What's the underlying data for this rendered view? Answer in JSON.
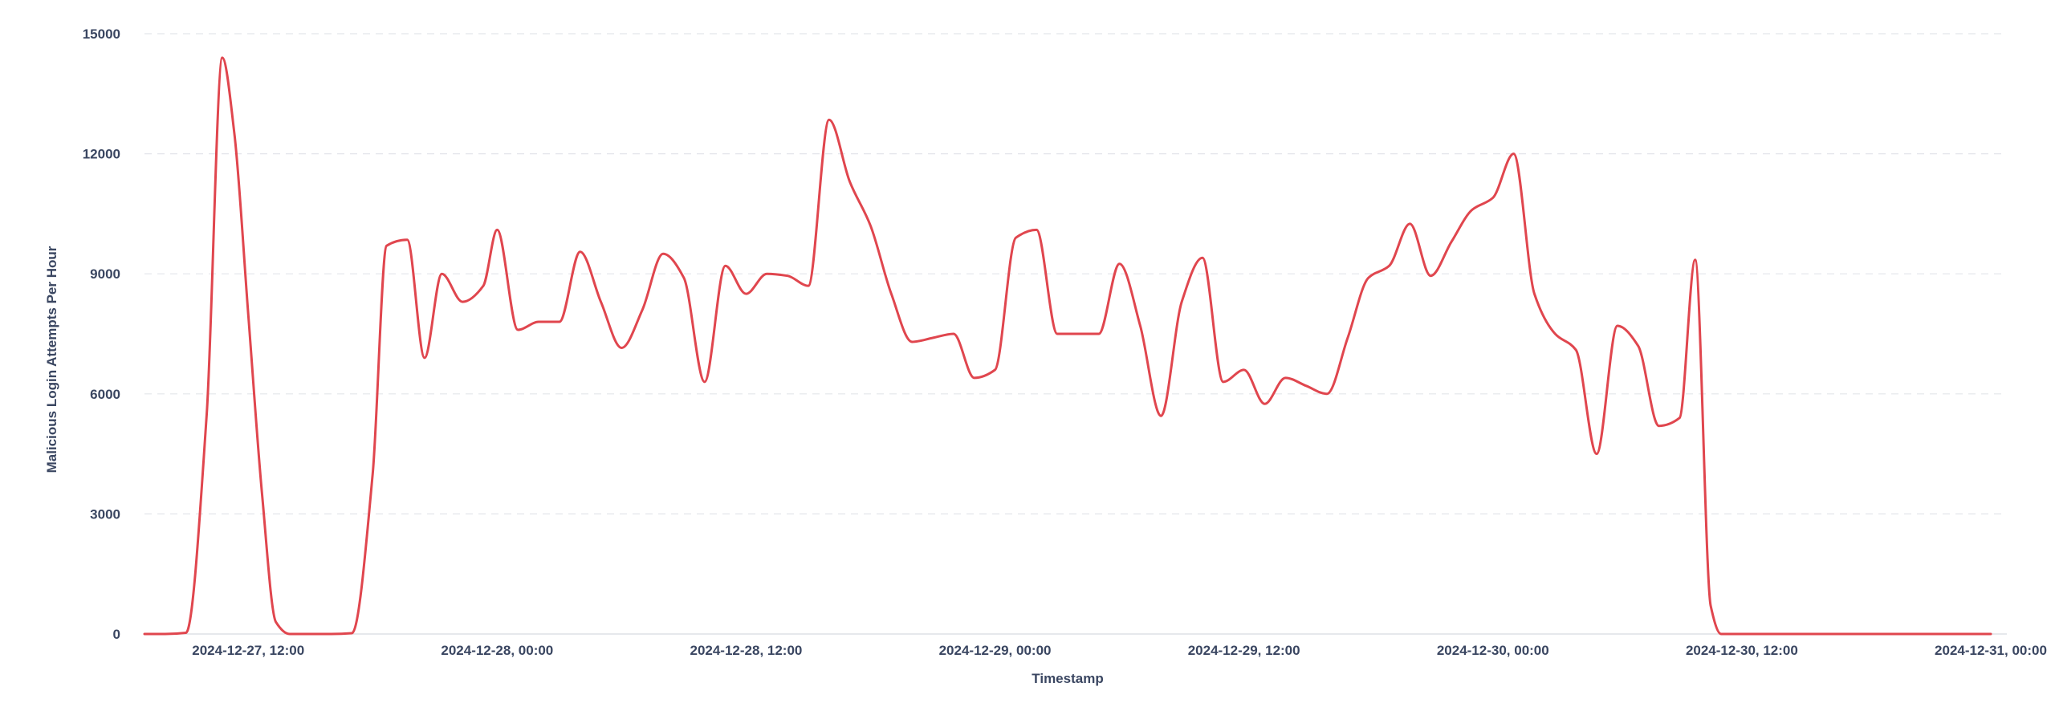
{
  "chart_data": {
    "type": "line",
    "title": "",
    "xlabel": "Timestamp",
    "ylabel": "Malicious Login Attempts Per Hour",
    "x_tick_labels": [
      "2024-12-27, 12:00",
      "2024-12-28, 00:00",
      "2024-12-28, 12:00",
      "2024-12-29, 00:00",
      "2024-12-29, 12:00",
      "2024-12-30, 00:00",
      "2024-12-30, 12:00",
      "2024-12-31, 00:00"
    ],
    "x_ticks": [
      "2024-12-27T12:00",
      "2024-12-28T00:00",
      "2024-12-28T12:00",
      "2024-12-29T00:00",
      "2024-12-29T12:00",
      "2024-12-30T00:00",
      "2024-12-30T12:00",
      "2024-12-31T00:00"
    ],
    "y_tick_labels": [
      "0",
      "3000",
      "6000",
      "9000",
      "12000",
      "15000"
    ],
    "ylim": [
      0,
      15000
    ],
    "xlim": [
      "2024-12-27T07:00",
      "2024-12-31T00:00"
    ],
    "grid": true,
    "series": [
      {
        "color": "#e0464e",
        "points": [
          [
            "2024-12-27T07:00",
            0
          ],
          [
            "2024-12-27T08:00",
            0
          ],
          [
            "2024-12-27T09:00",
            30
          ],
          [
            "2024-12-27T10:00",
            5500
          ],
          [
            "2024-12-27T10:45",
            14400
          ],
          [
            "2024-12-27T11:20",
            12500
          ],
          [
            "2024-12-27T12:00",
            8000
          ],
          [
            "2024-12-27T12:40",
            3500
          ],
          [
            "2024-12-27T13:20",
            300
          ],
          [
            "2024-12-27T14:00",
            0
          ],
          [
            "2024-12-27T15:00",
            0
          ],
          [
            "2024-12-27T16:00",
            0
          ],
          [
            "2024-12-27T17:00",
            20
          ],
          [
            "2024-12-27T18:00",
            4000
          ],
          [
            "2024-12-27T18:40",
            9700
          ],
          [
            "2024-12-27T19:40",
            9850
          ],
          [
            "2024-12-27T20:30",
            6900
          ],
          [
            "2024-12-27T21:20",
            9000
          ],
          [
            "2024-12-27T22:20",
            8300
          ],
          [
            "2024-12-27T23:20",
            8700
          ],
          [
            "2024-12-28T00:00",
            10100
          ],
          [
            "2024-12-28T01:00",
            7600
          ],
          [
            "2024-12-28T02:00",
            7800
          ],
          [
            "2024-12-28T03:00",
            7800
          ],
          [
            "2024-12-28T04:00",
            9550
          ],
          [
            "2024-12-28T05:00",
            8300
          ],
          [
            "2024-12-28T06:00",
            7150
          ],
          [
            "2024-12-28T07:00",
            8100
          ],
          [
            "2024-12-28T08:00",
            9500
          ],
          [
            "2024-12-28T09:00",
            8900
          ],
          [
            "2024-12-28T10:00",
            6300
          ],
          [
            "2024-12-28T11:00",
            9200
          ],
          [
            "2024-12-28T12:00",
            8500
          ],
          [
            "2024-12-28T13:00",
            9000
          ],
          [
            "2024-12-28T14:00",
            8950
          ],
          [
            "2024-12-28T15:00",
            8700
          ],
          [
            "2024-12-28T16:00",
            12850
          ],
          [
            "2024-12-28T17:00",
            11300
          ],
          [
            "2024-12-28T18:00",
            10200
          ],
          [
            "2024-12-28T19:00",
            8500
          ],
          [
            "2024-12-28T20:00",
            7300
          ],
          [
            "2024-12-28T21:00",
            7400
          ],
          [
            "2024-12-28T22:00",
            7500
          ],
          [
            "2024-12-28T23:00",
            6400
          ],
          [
            "2024-12-29T00:00",
            6600
          ],
          [
            "2024-12-29T01:00",
            9900
          ],
          [
            "2024-12-29T02:00",
            10100
          ],
          [
            "2024-12-29T03:00",
            7500
          ],
          [
            "2024-12-29T04:00",
            7500
          ],
          [
            "2024-12-29T05:00",
            7500
          ],
          [
            "2024-12-29T06:00",
            9250
          ],
          [
            "2024-12-29T07:00",
            7700
          ],
          [
            "2024-12-29T08:00",
            5450
          ],
          [
            "2024-12-29T09:00",
            8300
          ],
          [
            "2024-12-29T10:00",
            9400
          ],
          [
            "2024-12-29T11:00",
            6300
          ],
          [
            "2024-12-29T12:00",
            6600
          ],
          [
            "2024-12-29T13:00",
            5750
          ],
          [
            "2024-12-29T14:00",
            6400
          ],
          [
            "2024-12-29T15:00",
            6200
          ],
          [
            "2024-12-29T16:00",
            6000
          ],
          [
            "2024-12-29T17:00",
            7400
          ],
          [
            "2024-12-29T18:00",
            8900
          ],
          [
            "2024-12-29T19:00",
            9200
          ],
          [
            "2024-12-29T20:00",
            10250
          ],
          [
            "2024-12-29T21:00",
            8950
          ],
          [
            "2024-12-29T22:00",
            9800
          ],
          [
            "2024-12-29T23:00",
            10600
          ],
          [
            "2024-12-30T00:00",
            10900
          ],
          [
            "2024-12-30T01:00",
            12000
          ],
          [
            "2024-12-30T02:00",
            8500
          ],
          [
            "2024-12-30T03:00",
            7500
          ],
          [
            "2024-12-30T04:00",
            7100
          ],
          [
            "2024-12-30T05:00",
            4500
          ],
          [
            "2024-12-30T06:00",
            7700
          ],
          [
            "2024-12-30T07:00",
            7200
          ],
          [
            "2024-12-30T08:00",
            5200
          ],
          [
            "2024-12-30T09:00",
            5400
          ],
          [
            "2024-12-30T09:45",
            9350
          ],
          [
            "2024-12-30T10:30",
            700
          ],
          [
            "2024-12-30T11:00",
            0
          ],
          [
            "2024-12-30T12:00",
            0
          ],
          [
            "2024-12-30T14:00",
            0
          ],
          [
            "2024-12-30T16:00",
            0
          ],
          [
            "2024-12-30T18:00",
            0
          ],
          [
            "2024-12-30T20:00",
            0
          ],
          [
            "2024-12-30T22:00",
            0
          ],
          [
            "2024-12-31T00:00",
            0
          ]
        ]
      }
    ]
  }
}
